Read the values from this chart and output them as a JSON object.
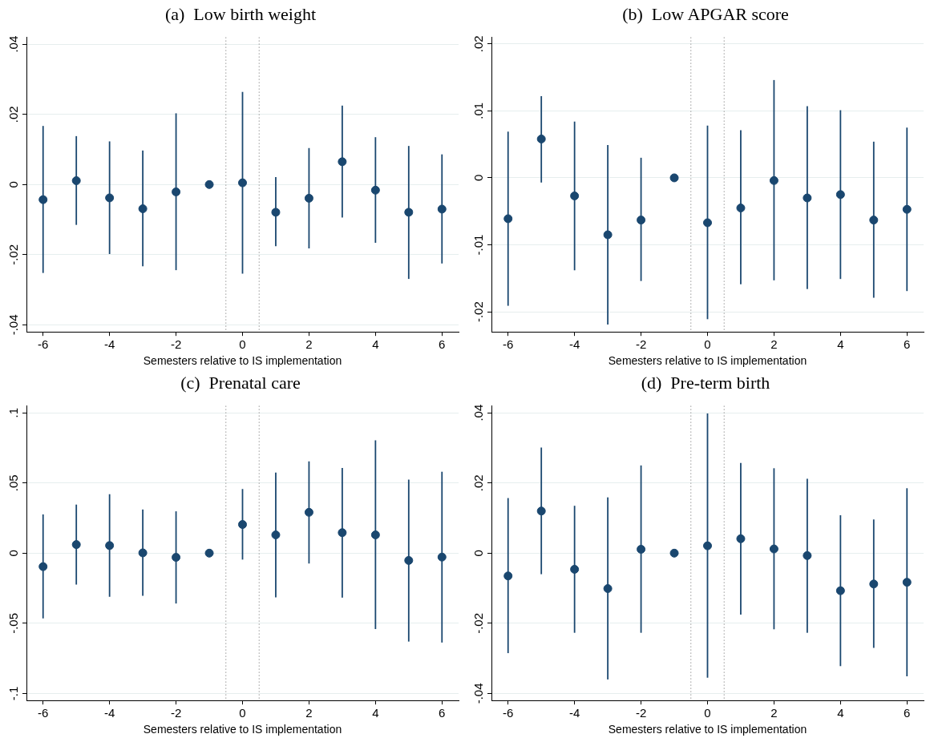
{
  "chart_data": [
    {
      "type": "scatter",
      "title": "(a)  Low birth weight",
      "xlabel": "Semesters relative to IS implementation",
      "color": "#1a476f",
      "marker": "circle",
      "grid": "y",
      "x": [
        -6,
        -5,
        -4,
        -3,
        -2,
        -1,
        0,
        1,
        2,
        3,
        4,
        5,
        6
      ],
      "values": [
        -0.0043,
        0.0011,
        -0.0038,
        -0.0069,
        -0.0021,
        0,
        0.0005,
        -0.0079,
        -0.0039,
        0.0065,
        -0.0016,
        -0.0079,
        -0.007
      ],
      "errors": [
        [
          -0.0252,
          0.0167
        ],
        [
          -0.0115,
          0.0138
        ],
        [
          -0.0198,
          0.0123
        ],
        [
          -0.0233,
          0.0097
        ],
        [
          -0.0244,
          0.0203
        ],
        null,
        [
          -0.0254,
          0.0264
        ],
        [
          -0.0176,
          0.0021
        ],
        [
          -0.0182,
          0.0104
        ],
        [
          -0.0094,
          0.0225
        ],
        [
          -0.0166,
          0.0135
        ],
        [
          -0.0269,
          0.011
        ],
        [
          -0.0225,
          0.0086
        ]
      ],
      "xlim": [
        -6.5,
        6.5
      ],
      "xticks": [
        -6,
        -4,
        -2,
        0,
        2,
        4,
        6
      ],
      "ylim": [
        -0.042,
        0.042
      ],
      "yticks": [
        {
          "value": -0.04,
          "label": "-.04"
        },
        {
          "value": -0.02,
          "label": "-.02"
        },
        {
          "value": 0,
          "label": "0"
        },
        {
          "value": 0.02,
          "label": ".02"
        },
        {
          "value": 0.04,
          "label": ".04"
        }
      ],
      "ref_lines": [
        {
          "axis": "x",
          "value": -0.5,
          "color": "#999999",
          "line_style": "dotted"
        },
        {
          "axis": "x",
          "value": 0.5,
          "color": "#999999",
          "line_style": "dotted"
        }
      ]
    },
    {
      "type": "scatter",
      "title": "(b)  Low APGAR score",
      "xlabel": "Semesters relative to IS implementation",
      "color": "#1a476f",
      "marker": "circle",
      "grid": "y",
      "x": [
        -6,
        -5,
        -4,
        -3,
        -2,
        -1,
        0,
        1,
        2,
        3,
        4,
        5,
        6
      ],
      "values": [
        -0.0061,
        0.0058,
        -0.0027,
        -0.0085,
        -0.0063,
        0,
        -0.0067,
        -0.0045,
        -0.0004,
        -0.003,
        -0.0025,
        -0.0063,
        -0.0047
      ],
      "errors": [
        [
          -0.0191,
          0.0069
        ],
        [
          -0.0007,
          0.0122
        ],
        [
          -0.0138,
          0.0084
        ],
        [
          -0.0219,
          0.0049
        ],
        [
          -0.0154,
          0.003
        ],
        null,
        [
          -0.0211,
          0.0078
        ],
        [
          -0.0159,
          0.0071
        ],
        [
          -0.0153,
          0.0146
        ],
        [
          -0.0166,
          0.0107
        ],
        [
          -0.0151,
          0.0101
        ],
        [
          -0.0179,
          0.0054
        ],
        [
          -0.0169,
          0.0075
        ]
      ],
      "xlim": [
        -6.5,
        6.5
      ],
      "xticks": [
        -6,
        -4,
        -2,
        0,
        2,
        4,
        6
      ],
      "ylim": [
        -0.023,
        0.021
      ],
      "yticks": [
        {
          "value": -0.02,
          "label": "-.02"
        },
        {
          "value": -0.01,
          "label": "-.01"
        },
        {
          "value": 0,
          "label": "0"
        },
        {
          "value": 0.01,
          "label": ".01"
        },
        {
          "value": 0.02,
          "label": ".02"
        }
      ],
      "ref_lines": [
        {
          "axis": "x",
          "value": -0.5,
          "color": "#999999",
          "line_style": "dotted"
        },
        {
          "axis": "x",
          "value": 0.5,
          "color": "#999999",
          "line_style": "dotted"
        }
      ]
    },
    {
      "type": "scatter",
      "title": "(c)  Prenatal care",
      "xlabel": "Semesters relative to IS implementation",
      "color": "#1a476f",
      "marker": "circle",
      "grid": "y",
      "x": [
        -6,
        -5,
        -4,
        -3,
        -2,
        -1,
        0,
        1,
        2,
        3,
        4,
        5,
        6
      ],
      "values": [
        -0.0096,
        0.0061,
        0.0054,
        0.0002,
        -0.003,
        0,
        0.0204,
        0.013,
        0.0291,
        0.0146,
        0.013,
        -0.0052,
        -0.0028
      ],
      "errors": [
        [
          -0.0465,
          0.0276
        ],
        [
          -0.0224,
          0.0346
        ],
        [
          -0.0311,
          0.042
        ],
        [
          -0.0304,
          0.0311
        ],
        [
          -0.0359,
          0.0298
        ],
        null,
        [
          -0.0046,
          0.0457
        ],
        [
          -0.0315,
          0.0574
        ],
        [
          -0.0074,
          0.0654
        ],
        [
          -0.0317,
          0.0607
        ],
        [
          -0.0541,
          0.0804
        ],
        [
          -0.063,
          0.0524
        ],
        [
          -0.0637,
          0.058
        ]
      ],
      "xlim": [
        -6.5,
        6.5
      ],
      "xticks": [
        -6,
        -4,
        -2,
        0,
        2,
        4,
        6
      ],
      "ylim": [
        -0.105,
        0.105
      ],
      "yticks": [
        {
          "value": -0.1,
          "label": "-.1"
        },
        {
          "value": -0.05,
          "label": "-.05"
        },
        {
          "value": 0,
          "label": "0"
        },
        {
          "value": 0.05,
          "label": ".05"
        },
        {
          "value": 0.1,
          "label": ".1"
        }
      ],
      "ref_lines": [
        {
          "axis": "x",
          "value": -0.5,
          "color": "#999999",
          "line_style": "dotted"
        },
        {
          "axis": "x",
          "value": 0.5,
          "color": "#999999",
          "line_style": "dotted"
        }
      ]
    },
    {
      "type": "scatter",
      "title": "(d)  Pre-term birth",
      "xlabel": "Semesters relative to IS implementation",
      "color": "#1a476f",
      "marker": "circle",
      "grid": "y",
      "x": [
        -6,
        -5,
        -4,
        -3,
        -2,
        -1,
        0,
        1,
        2,
        3,
        4,
        5,
        6
      ],
      "values": [
        -0.0065,
        0.012,
        -0.0046,
        -0.0101,
        0.0011,
        0,
        0.0021,
        0.0041,
        0.0012,
        -0.0007,
        -0.0107,
        -0.0088,
        -0.0083
      ],
      "errors": [
        [
          -0.0285,
          0.0157
        ],
        [
          -0.006,
          0.0301
        ],
        [
          -0.0227,
          0.0135
        ],
        [
          -0.036,
          0.0159
        ],
        [
          -0.0227,
          0.025
        ],
        null,
        [
          -0.0355,
          0.0398
        ],
        [
          -0.0175,
          0.0257
        ],
        [
          -0.0217,
          0.0242
        ],
        [
          -0.0227,
          0.0212
        ],
        [
          -0.0322,
          0.0108
        ],
        [
          -0.027,
          0.0096
        ],
        [
          -0.0351,
          0.0185
        ]
      ],
      "xlim": [
        -6.5,
        6.5
      ],
      "xticks": [
        -6,
        -4,
        -2,
        0,
        2,
        4,
        6
      ],
      "ylim": [
        -0.042,
        0.042
      ],
      "yticks": [
        {
          "value": -0.04,
          "label": "-.04"
        },
        {
          "value": -0.02,
          "label": "-.02"
        },
        {
          "value": 0,
          "label": "0"
        },
        {
          "value": 0.02,
          "label": ".02"
        },
        {
          "value": 0.04,
          "label": ".04"
        }
      ],
      "ref_lines": [
        {
          "axis": "x",
          "value": -0.5,
          "color": "#999999",
          "line_style": "dotted"
        },
        {
          "axis": "x",
          "value": 0.5,
          "color": "#999999",
          "line_style": "dotted"
        }
      ]
    }
  ]
}
